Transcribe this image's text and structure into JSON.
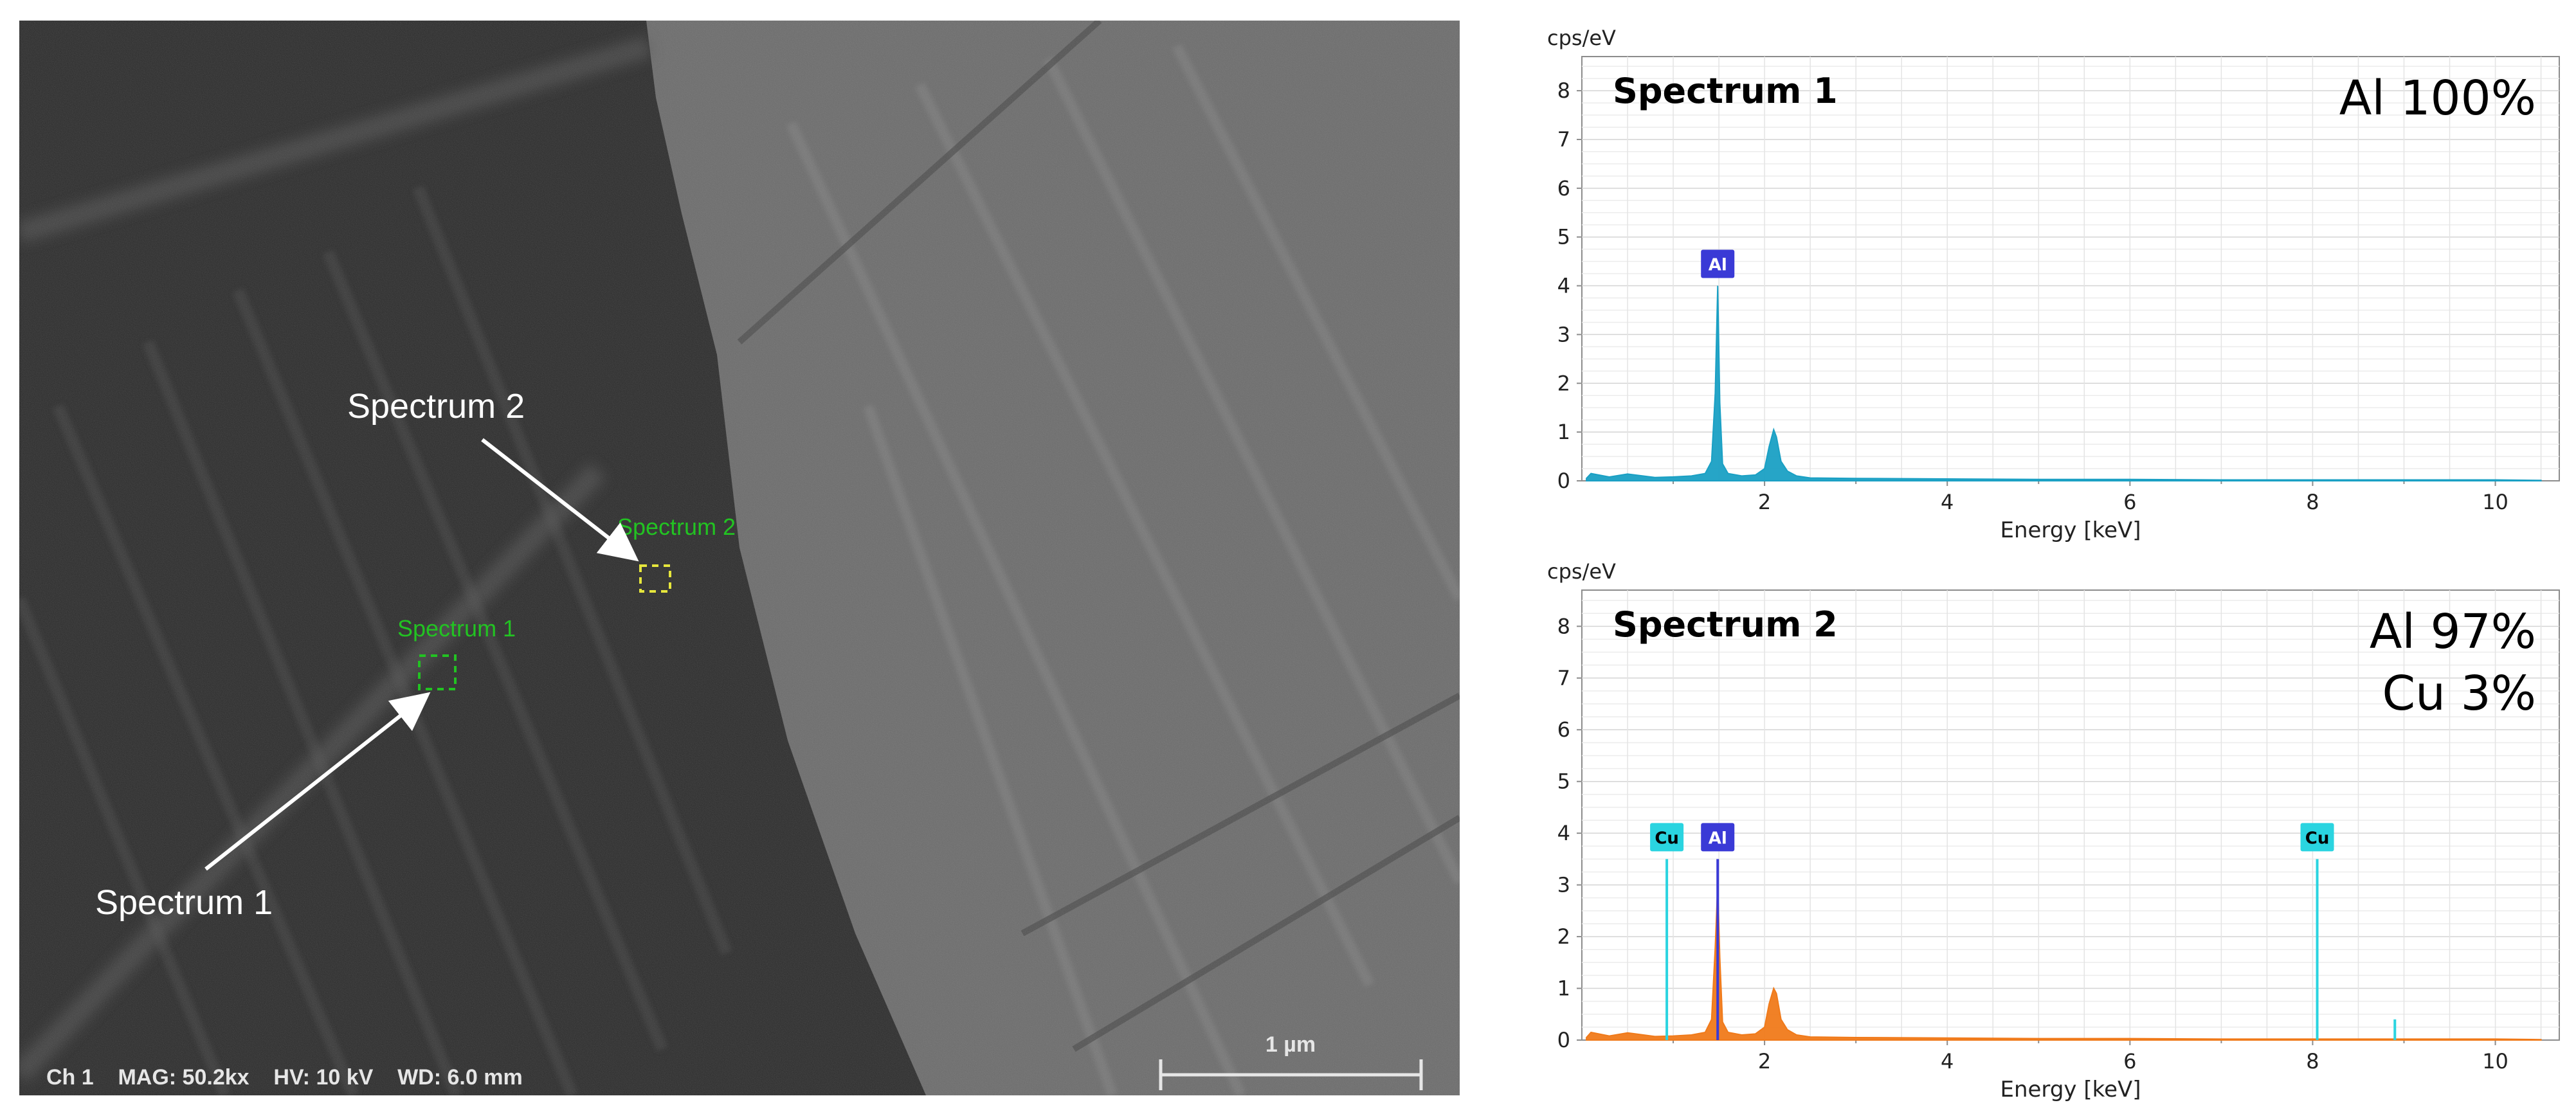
{
  "sem_image": {
    "info_bar": "Ch 1    MAG: 50.2kx    HV: 10 kV    WD: 6.0 mm",
    "scale_bar_label": "1 µm",
    "regions": [
      {
        "label": "Spectrum 1",
        "callout": "Spectrum 1",
        "color": "#22c322"
      },
      {
        "label": "Spectrum 2",
        "callout": "Spectrum 2",
        "color": "#22c322"
      }
    ],
    "region_marker_color": "#e6e63c"
  },
  "chart_data": [
    {
      "type": "area",
      "title": "Spectrum 1",
      "composition": [
        "Al 100%"
      ],
      "ylabel": "cps/eV",
      "xlabel": "Energy [keV]",
      "xlim": [
        0,
        10.7
      ],
      "ylim": [
        0,
        8.7
      ],
      "xticks": [
        "2",
        "4",
        "6",
        "8",
        "10"
      ],
      "yticks": [
        "0",
        "1",
        "2",
        "3",
        "4",
        "5",
        "6",
        "7",
        "8"
      ],
      "grid": true,
      "series": [
        {
          "color": "#1aa0c4",
          "x": [
            0.05,
            0.1,
            0.3,
            0.5,
            0.8,
            1.0,
            1.2,
            1.35,
            1.42,
            1.46,
            1.487,
            1.51,
            1.54,
            1.6,
            1.75,
            1.9,
            2.0,
            2.05,
            2.1,
            2.13,
            2.18,
            2.25,
            2.35,
            2.5,
            3.0,
            4.0,
            5.0,
            6.0,
            7.0,
            8.0,
            9.0,
            10.0,
            10.5
          ],
          "y": [
            0.05,
            0.15,
            0.08,
            0.14,
            0.07,
            0.08,
            0.1,
            0.15,
            0.4,
            1.8,
            4.0,
            1.6,
            0.35,
            0.15,
            0.1,
            0.12,
            0.25,
            0.7,
            1.05,
            0.9,
            0.4,
            0.2,
            0.1,
            0.06,
            0.05,
            0.04,
            0.03,
            0.03,
            0.02,
            0.02,
            0.02,
            0.02,
            0.01
          ]
        }
      ],
      "peak_labels": [
        {
          "label": "Al",
          "x": 1.487,
          "y": 4.0,
          "color": "#3a3ad6"
        }
      ]
    },
    {
      "type": "area",
      "title": "Spectrum 2",
      "composition": [
        "Al 97%",
        "Cu 3%"
      ],
      "ylabel": "cps/eV",
      "xlabel": "Energy [keV]",
      "xlim": [
        0,
        10.7
      ],
      "ylim": [
        0,
        8.7
      ],
      "xticks": [
        "2",
        "4",
        "6",
        "8",
        "10"
      ],
      "yticks": [
        "0",
        "1",
        "2",
        "3",
        "4",
        "5",
        "6",
        "7",
        "8"
      ],
      "grid": true,
      "series": [
        {
          "color": "#f07a1a",
          "x": [
            0.05,
            0.1,
            0.3,
            0.5,
            0.8,
            1.0,
            1.2,
            1.35,
            1.42,
            1.46,
            1.487,
            1.51,
            1.54,
            1.6,
            1.75,
            1.9,
            2.0,
            2.05,
            2.1,
            2.13,
            2.18,
            2.25,
            2.35,
            2.5,
            3.0,
            4.0,
            5.0,
            6.0,
            7.0,
            8.0,
            9.0,
            10.0,
            10.5
          ],
          "y": [
            0.05,
            0.15,
            0.08,
            0.14,
            0.07,
            0.08,
            0.1,
            0.15,
            0.4,
            1.8,
            3.0,
            1.6,
            0.35,
            0.15,
            0.1,
            0.12,
            0.25,
            0.7,
            1.0,
            0.9,
            0.4,
            0.2,
            0.1,
            0.06,
            0.05,
            0.04,
            0.03,
            0.03,
            0.02,
            0.02,
            0.02,
            0.02,
            0.01
          ]
        }
      ],
      "lines": [
        {
          "x": 0.93,
          "y": 3.5,
          "color": "#2ad4e0"
        },
        {
          "x": 8.05,
          "y": 3.5,
          "color": "#2ad4e0"
        },
        {
          "x": 8.9,
          "y": 0.4,
          "color": "#2ad4e0"
        },
        {
          "x": 1.487,
          "y": 3.5,
          "color": "#3a3ad6"
        }
      ],
      "peak_labels": [
        {
          "label": "Cu",
          "x": 0.93,
          "y": 3.5,
          "color": "#2ad4e0"
        },
        {
          "label": "Al",
          "x": 1.487,
          "y": 3.5,
          "color": "#3a3ad6"
        },
        {
          "label": "Cu",
          "x": 8.05,
          "y": 3.5,
          "color": "#2ad4e0"
        }
      ]
    }
  ]
}
